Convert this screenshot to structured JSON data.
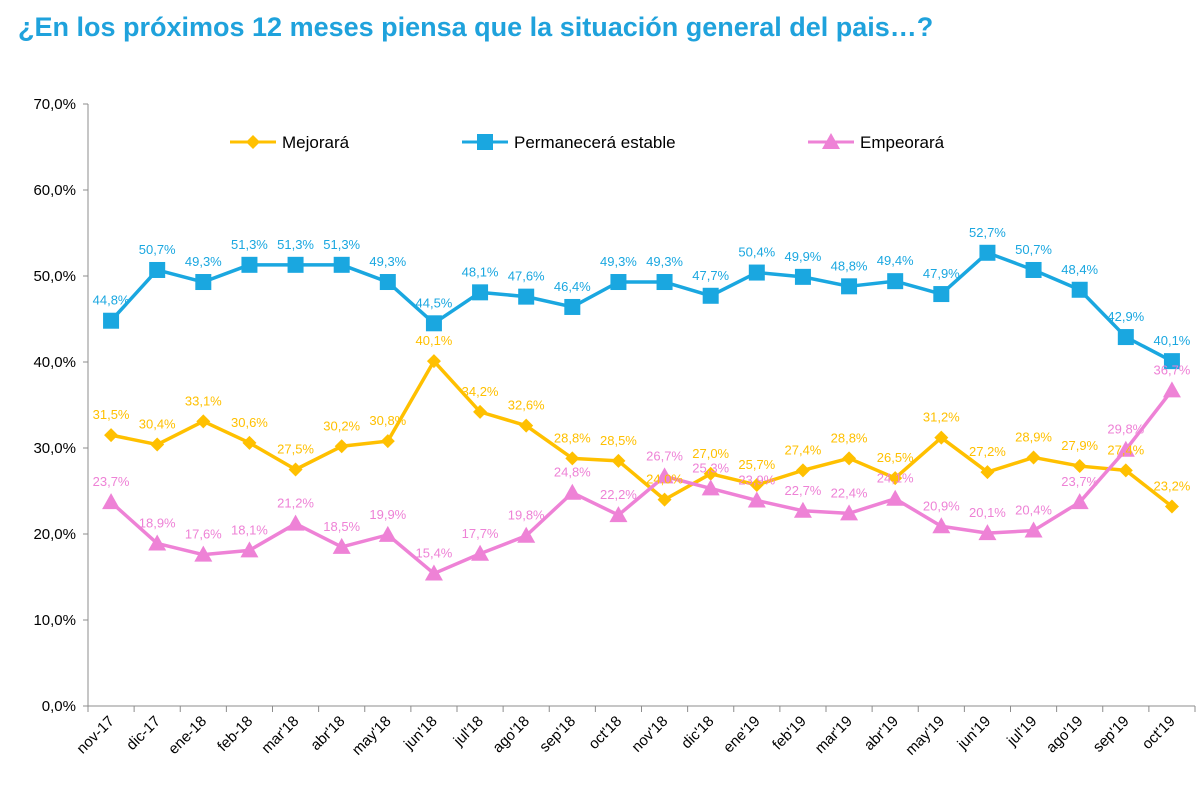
{
  "title": "¿En los próximos 12 meses piensa que la situación general del pais…?",
  "chart_data": {
    "type": "line",
    "categories": [
      "nov-17",
      "dic-17",
      "ene-18",
      "feb-18",
      "mar'18",
      "abr'18",
      "may'18",
      "jun'18",
      "jul'18",
      "ago'18",
      "sep'18",
      "oct'18",
      "nov'18",
      "dic'18",
      "ene'19",
      "feb'19",
      "mar'19",
      "abr'19",
      "may'19",
      "jun'19",
      "jul'19",
      "ago'19",
      "sep'19",
      "oct'19"
    ],
    "ylim": [
      0,
      70
    ],
    "yticks": [
      "0,0%",
      "10,0%",
      "20,0%",
      "30,0%",
      "40,0%",
      "50,0%",
      "60,0%",
      "70,0%"
    ],
    "grid": false,
    "legend_position": "top",
    "series": [
      {
        "name": "Mejorará",
        "color": "#ffc000",
        "marker": "diamond",
        "values": [
          31.5,
          30.4,
          33.1,
          30.6,
          27.5,
          30.2,
          30.8,
          40.1,
          34.2,
          32.6,
          28.8,
          28.5,
          24.0,
          27.0,
          25.7,
          27.4,
          28.8,
          26.5,
          31.2,
          27.2,
          28.9,
          27.9,
          27.4,
          23.2
        ],
        "labels": [
          "31,5%",
          "30,4%",
          "33,1%",
          "30,6%",
          "27,5%",
          "30,2%",
          "30,8%",
          "40,1%",
          "34,2%",
          "32,6%",
          "28,8%",
          "28,5%",
          "24,0%",
          "27,0%",
          "25,7%",
          "27,4%",
          "28,8%",
          "26,5%",
          "31,2%",
          "27,2%",
          "28,9%",
          "27,9%",
          "27,4%",
          "23,2%"
        ]
      },
      {
        "name": "Permanecerá estable",
        "color": "#1aa7e0",
        "marker": "square",
        "values": [
          44.8,
          50.7,
          49.3,
          51.3,
          51.3,
          51.3,
          49.3,
          44.5,
          48.1,
          47.6,
          46.4,
          49.3,
          49.3,
          47.7,
          50.4,
          49.9,
          48.8,
          49.4,
          47.9,
          52.7,
          50.7,
          48.4,
          42.9,
          40.1
        ],
        "labels": [
          "44,8%",
          "50,7%",
          "49,3%",
          "51,3%",
          "51,3%",
          "51,3%",
          "49,3%",
          "44,5%",
          "48,1%",
          "47,6%",
          "46,4%",
          "49,3%",
          "49,3%",
          "47,7%",
          "50,4%",
          "49,9%",
          "48,8%",
          "49,4%",
          "47,9%",
          "52,7%",
          "50,7%",
          "48,4%",
          "42,9%",
          "40,1%"
        ]
      },
      {
        "name": "Empeorará",
        "color": "#ee82d6",
        "marker": "triangle",
        "values": [
          23.7,
          18.9,
          17.6,
          18.1,
          21.2,
          18.5,
          19.9,
          15.4,
          17.7,
          19.8,
          24.8,
          22.2,
          26.7,
          25.3,
          23.9,
          22.7,
          22.4,
          24.1,
          20.9,
          20.1,
          20.4,
          23.7,
          29.8,
          36.7
        ],
        "labels": [
          "23,7%",
          "18,9%",
          "17,6%",
          "18,1%",
          "21,2%",
          "18,5%",
          "19,9%",
          "15,4%",
          "17,7%",
          "19,8%",
          "24,8%",
          "22,2%",
          "26,7%",
          "25,3%",
          "23,9%",
          "22,7%",
          "22,4%",
          "24,1%",
          "20,9%",
          "20,1%",
          "20,4%",
          "23,7%",
          "29,8%",
          "36,7%"
        ]
      }
    ]
  }
}
